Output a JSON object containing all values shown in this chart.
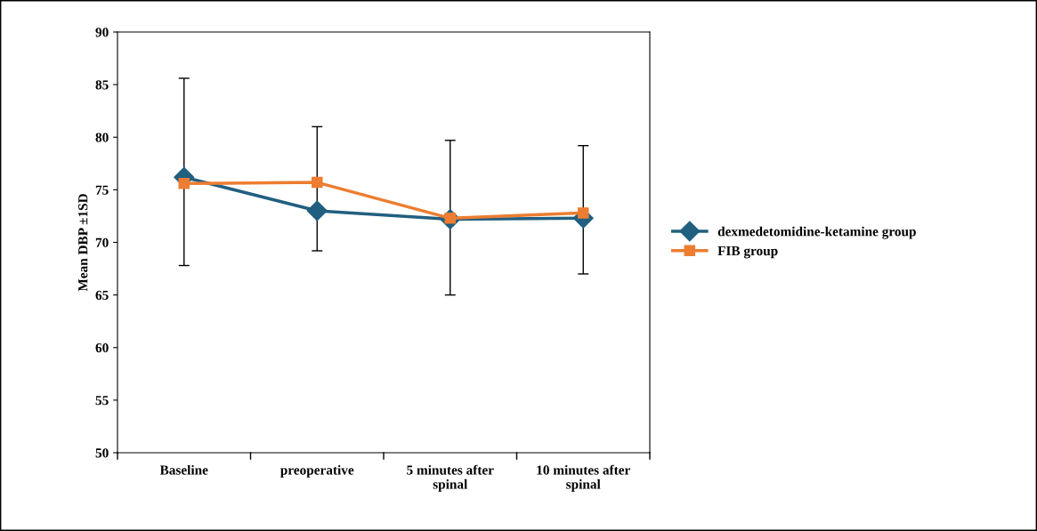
{
  "chart_data": {
    "type": "line",
    "ylabel": "Mean DBP ±1SD",
    "categories": [
      "Baseline",
      "preoperative",
      "5 minutes after spinal",
      "10 minutes after spinal"
    ],
    "series": [
      {
        "name": "dexmedetomidine-ketamine group",
        "color": "#215f80",
        "marker": "diamond",
        "values": [
          76.2,
          73.0,
          72.2,
          72.3
        ],
        "errors": [
          [
            67.8,
            85.6
          ],
          [
            69.2,
            81.0
          ],
          [
            65.0,
            79.7
          ],
          [
            67.0,
            79.2
          ]
        ]
      },
      {
        "name": "FIB group",
        "color": "#ed7d31",
        "marker": "square",
        "values": [
          75.6,
          75.7,
          72.3,
          72.8
        ]
      }
    ],
    "ylim": [
      50,
      90
    ],
    "yticks": [
      50,
      55,
      60,
      65,
      70,
      75,
      80,
      85,
      90
    ],
    "grid": false,
    "legend": "right",
    "line_style": "solid"
  }
}
